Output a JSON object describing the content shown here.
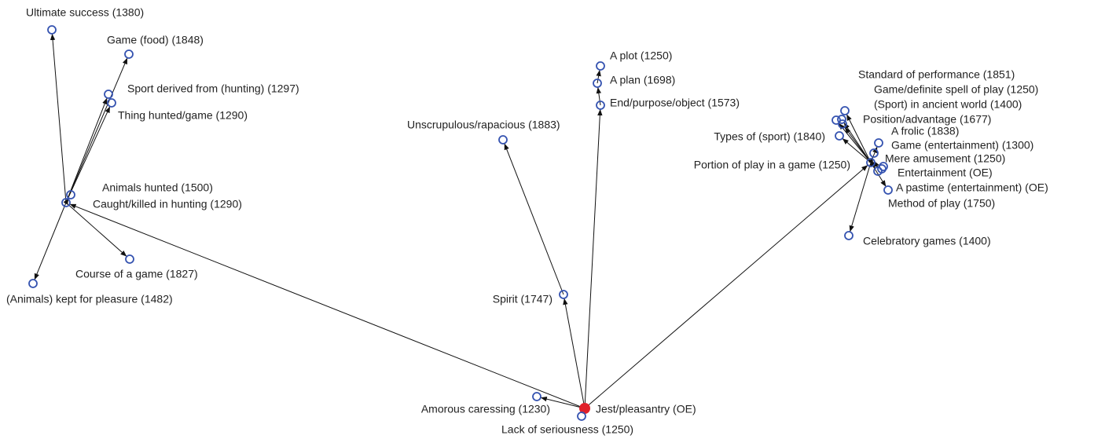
{
  "nodes": [
    {
      "label": "Jest/pleasantry (OE)"
    },
    {
      "label": "Lack of seriousness (1250)"
    },
    {
      "label": "Amorous caressing (1230)"
    },
    {
      "label": "Spirit (1747)"
    },
    {
      "label": "Unscrupulous/rapacious (1883)"
    },
    {
      "label": "End/purpose/object (1573)"
    },
    {
      "label": "A plan (1698)"
    },
    {
      "label": "A plot (1250)"
    },
    {
      "label": "Animals hunted (1500)"
    },
    {
      "label": "Caught/killed in hunting (1290)"
    },
    {
      "label": "Ultimate success (1380)"
    },
    {
      "label": "Game (food) (1848)"
    },
    {
      "label": "Sport derived from (hunting) (1297)"
    },
    {
      "label": "Thing hunted/game (1290)"
    },
    {
      "label": "Course of a game (1827)"
    },
    {
      "label": "(Animals) kept for pleasure (1482)"
    },
    {
      "label": "Portion of play in a game (1250)"
    },
    {
      "label": "Standard of performance (1851)"
    },
    {
      "label": "Game/definite spell of play (1250)"
    },
    {
      "label": "(Sport) in ancient world (1400)"
    },
    {
      "label": "Position/advantage (1677)"
    },
    {
      "label": "Types of (sport) (1840)"
    },
    {
      "label": "A frolic (1838)"
    },
    {
      "label": "Game (entertainment) (1300)"
    },
    {
      "label": "Mere amusement (1250)"
    },
    {
      "label": "Entertainment (OE)"
    },
    {
      "label": "A pastime (entertainment) (OE)"
    },
    {
      "label": "Method of play (1750)"
    },
    {
      "label": "Celebratory games (1400)"
    }
  ]
}
